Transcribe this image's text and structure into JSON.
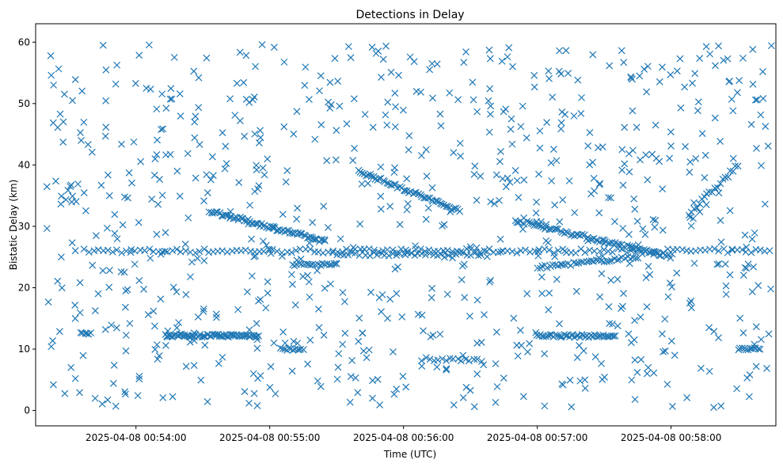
{
  "chart_data": {
    "type": "scatter",
    "title": "Detections in Delay",
    "xlabel": "Time (UTC)",
    "ylabel": "Bistatic Delay (km)",
    "marker": "x",
    "color": "#1f77b4",
    "xlim_seconds_after_00_53_00": [
      15,
      347
    ],
    "ylim": [
      -2.5,
      63
    ],
    "grid": false,
    "legend": "none",
    "x_ticks": [
      {
        "t": 60,
        "label": "2025-04-08 00:54:00"
      },
      {
        "t": 120,
        "label": "2025-04-08 00:55:00"
      },
      {
        "t": 180,
        "label": "2025-04-08 00:56:00"
      },
      {
        "t": 240,
        "label": "2025-04-08 00:57:00"
      },
      {
        "t": 300,
        "label": "2025-04-08 00:58:00"
      }
    ],
    "y_ticks": [
      {
        "v": 0,
        "label": "0"
      },
      {
        "v": 10,
        "label": "10"
      },
      {
        "v": 20,
        "label": "20"
      },
      {
        "v": 30,
        "label": "30"
      },
      {
        "v": 40,
        "label": "40"
      },
      {
        "v": 50,
        "label": "50"
      },
      {
        "v": 60,
        "label": "60"
      }
    ],
    "tracks": [
      {
        "name": "band-26km",
        "t_start": 37,
        "t_end": 344,
        "delay_start": 26.0,
        "delay_end": 26.0,
        "count": 150,
        "jitter": 0.35
      },
      {
        "name": "band-25km",
        "t_start": 150,
        "t_end": 215,
        "delay_start": 25.5,
        "delay_end": 25.5,
        "count": 40,
        "jitter": 0.3
      },
      {
        "name": "band-12km-a",
        "t_start": 73,
        "t_end": 115,
        "delay_start": 12.2,
        "delay_end": 12.2,
        "count": 70,
        "jitter": 0.25
      },
      {
        "name": "band-12km-b",
        "t_start": 240,
        "t_end": 275,
        "delay_start": 12.2,
        "delay_end": 12.1,
        "count": 45,
        "jitter": 0.25
      },
      {
        "name": "band-12km-c",
        "t_start": 35,
        "t_end": 40,
        "delay_start": 12.5,
        "delay_end": 12.5,
        "count": 6,
        "jitter": 0.2
      },
      {
        "name": "descending-32-to-27",
        "t_start": 93,
        "t_end": 145,
        "delay_start": 32.5,
        "delay_end": 27.5,
        "count": 70,
        "jitter": 0.3
      },
      {
        "name": "descending-39-to-32",
        "t_start": 160,
        "t_end": 205,
        "delay_start": 39.0,
        "delay_end": 32.5,
        "count": 55,
        "jitter": 0.3
      },
      {
        "name": "descending-31-to-25",
        "t_start": 230,
        "t_end": 300,
        "delay_start": 31.0,
        "delay_end": 25.0,
        "count": 80,
        "jitter": 0.3
      },
      {
        "name": "ascending-23-to-25",
        "t_start": 240,
        "t_end": 285,
        "delay_start": 23.3,
        "delay_end": 25.0,
        "count": 40,
        "jitter": 0.25
      },
      {
        "name": "band-23km",
        "t_start": 130,
        "t_end": 150,
        "delay_start": 23.8,
        "delay_end": 23.8,
        "count": 20,
        "jitter": 0.25
      },
      {
        "name": "band-10km-a",
        "t_start": 125,
        "t_end": 135,
        "delay_start": 10.0,
        "delay_end": 10.0,
        "count": 12,
        "jitter": 0.2
      },
      {
        "name": "band-10km-b",
        "t_start": 330,
        "t_end": 340,
        "delay_start": 10.0,
        "delay_end": 10.0,
        "count": 12,
        "jitter": 0.2
      },
      {
        "name": "band-8km",
        "t_start": 190,
        "t_end": 215,
        "delay_start": 8.3,
        "delay_end": 8.3,
        "count": 15,
        "jitter": 0.3
      },
      {
        "name": "ascending-32-to-40",
        "t_start": 308,
        "t_end": 330,
        "delay_start": 32.0,
        "delay_end": 40.0,
        "count": 20,
        "jitter": 0.4
      }
    ],
    "clutter": {
      "count": 800,
      "t_range": [
        20,
        345
      ],
      "delay_range": [
        0.5,
        59.8
      ],
      "seed": 7
    }
  }
}
